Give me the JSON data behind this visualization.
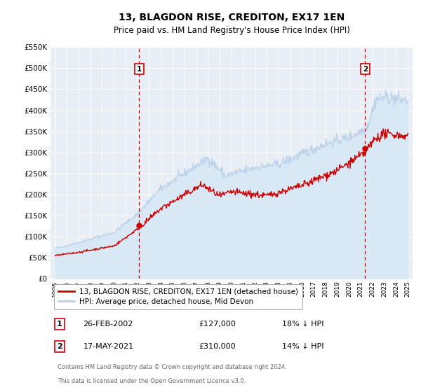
{
  "title": "13, BLAGDON RISE, CREDITON, EX17 1EN",
  "subtitle": "Price paid vs. HM Land Registry's House Price Index (HPI)",
  "ylim": [
    0,
    550000
  ],
  "yticks": [
    0,
    50000,
    100000,
    150000,
    200000,
    250000,
    300000,
    350000,
    400000,
    450000,
    500000,
    550000
  ],
  "ytick_labels": [
    "£0",
    "£50K",
    "£100K",
    "£150K",
    "£200K",
    "£250K",
    "£300K",
    "£350K",
    "£400K",
    "£450K",
    "£500K",
    "£550K"
  ],
  "xlim_start": 1994.6,
  "xlim_end": 2025.4,
  "xticks": [
    1995,
    1996,
    1997,
    1998,
    1999,
    2000,
    2001,
    2002,
    2003,
    2004,
    2005,
    2006,
    2007,
    2008,
    2009,
    2010,
    2011,
    2012,
    2013,
    2014,
    2015,
    2016,
    2017,
    2018,
    2019,
    2020,
    2021,
    2022,
    2023,
    2024,
    2025
  ],
  "hpi_color": "#b8d0e8",
  "hpi_fill_color": "#d8e8f4",
  "price_color": "#cc0000",
  "dot_color": "#cc0000",
  "vline_color": "#cc0000",
  "background_color": "#e8eef5",
  "grid_color": "#ffffff",
  "legend_label_red": "13, BLAGDON RISE, CREDITON, EX17 1EN (detached house)",
  "legend_label_blue": "HPI: Average price, detached house, Mid Devon",
  "annotation1_label": "1",
  "annotation1_date": "26-FEB-2002",
  "annotation1_price": "£127,000",
  "annotation1_hpi": "18% ↓ HPI",
  "annotation1_year": 2002.15,
  "annotation1_value": 127000,
  "annotation2_label": "2",
  "annotation2_date": "17-MAY-2021",
  "annotation2_price": "£310,000",
  "annotation2_hpi": "14% ↓ HPI",
  "annotation2_year": 2021.37,
  "annotation2_value": 310000,
  "footer1": "Contains HM Land Registry data © Crown copyright and database right 2024.",
  "footer2": "This data is licensed under the Open Government Licence v3.0."
}
